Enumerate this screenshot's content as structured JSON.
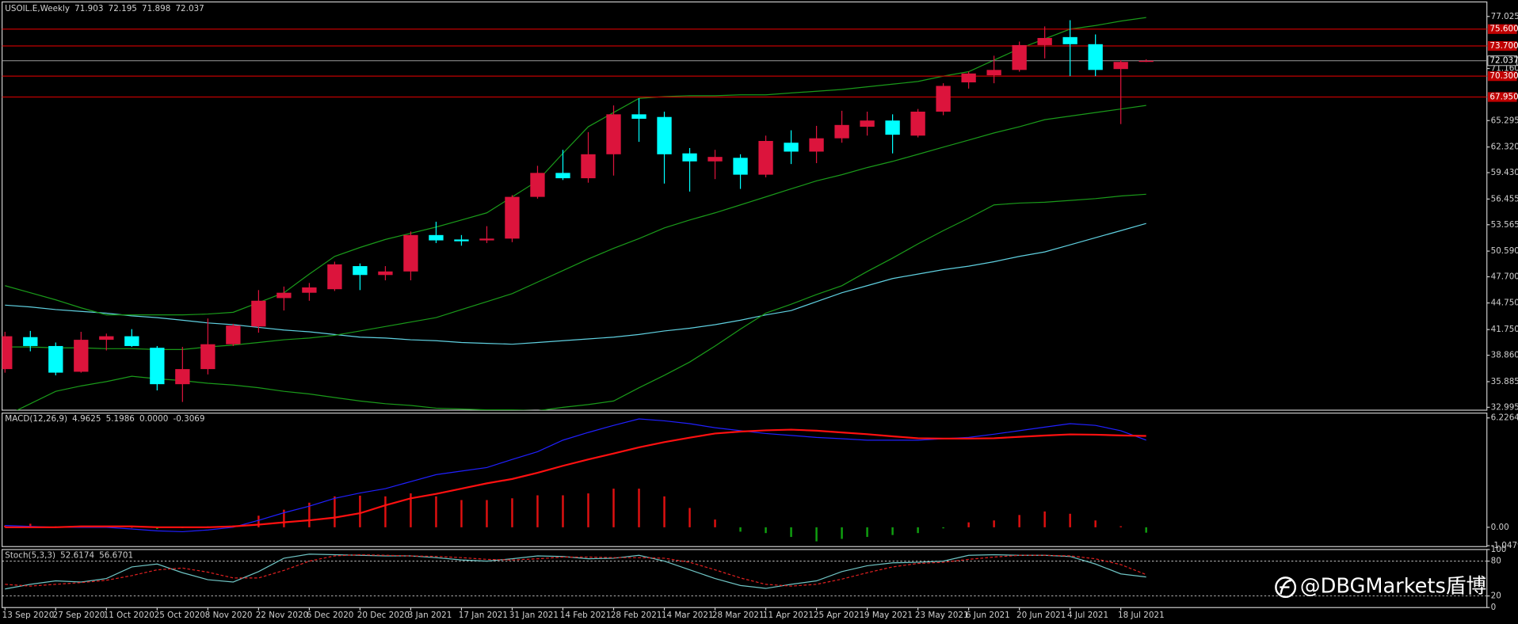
{
  "chart_data": [
    {
      "type": "candlestick",
      "title": "USOIL.E,Weekly",
      "categories": [
        "13 Sep 2020",
        null,
        "27 Sep 2020",
        null,
        "11 Oct 2020",
        null,
        "25 Oct 2020",
        null,
        "8 Nov 2020",
        null,
        "22 Nov 2020",
        null,
        "6 Dec 2020",
        null,
        "20 Dec 2020",
        null,
        "3 Jan 2021",
        null,
        "17 Jan 2021",
        null,
        "31 Jan 2021",
        null,
        "14 Feb 2021",
        null,
        "28 Feb 2021",
        null,
        "14 Mar 2021",
        null,
        "28 Mar 2021",
        null,
        "11 Apr 2021",
        null,
        "25 Apr 2021",
        null,
        "9 May 2021",
        null,
        "23 May 2021",
        null,
        "6 Jun 2021",
        null,
        "20 Jun 2021",
        null,
        "4 Jul 2021",
        null,
        "18 Jul 2021",
        null
      ],
      "open": [
        37.3,
        40.9,
        39.9,
        37.0,
        40.6,
        41.0,
        39.7,
        35.6,
        37.3,
        40.1,
        42.1,
        45.3,
        45.9,
        46.3,
        48.9,
        47.9,
        48.3,
        52.4,
        51.9,
        51.8,
        52.0,
        56.7,
        59.4,
        58.8,
        61.5,
        66.0,
        65.7,
        61.6,
        60.7,
        61.1,
        59.2,
        62.8,
        61.8,
        63.3,
        64.6,
        65.3,
        63.6,
        66.3,
        69.6,
        70.4,
        71.0,
        73.8,
        74.7,
        73.9,
        71.1,
        71.903
      ],
      "high": [
        41.5,
        41.6,
        40.3,
        41.5,
        41.3,
        41.8,
        39.9,
        39.8,
        43.0,
        42.4,
        46.2,
        46.6,
        47.0,
        49.4,
        49.2,
        48.9,
        52.8,
        53.9,
        52.4,
        53.4,
        56.9,
        60.2,
        62.0,
        64.0,
        67.0,
        67.8,
        66.3,
        62.2,
        62.0,
        61.5,
        63.6,
        64.2,
        64.7,
        66.4,
        66.3,
        66.0,
        66.6,
        69.5,
        70.8,
        72.6,
        74.2,
        75.9,
        76.6,
        75.0,
        72.1,
        72.195
      ],
      "low": [
        36.9,
        39.3,
        36.6,
        36.9,
        39.4,
        39.8,
        34.9,
        33.6,
        36.7,
        39.9,
        41.4,
        43.9,
        45.0,
        46.1,
        46.2,
        47.3,
        47.3,
        51.5,
        51.2,
        51.5,
        51.6,
        56.5,
        58.6,
        58.3,
        59.1,
        62.9,
        58.2,
        57.3,
        58.7,
        57.6,
        58.9,
        60.4,
        60.5,
        62.8,
        63.6,
        61.6,
        63.4,
        65.9,
        68.9,
        69.5,
        70.8,
        72.3,
        70.3,
        70.3,
        64.9,
        71.898
      ],
      "close": [
        41.0,
        39.9,
        36.9,
        40.6,
        41.0,
        39.9,
        35.6,
        37.3,
        40.1,
        42.2,
        45.0,
        45.9,
        46.5,
        49.1,
        47.9,
        48.3,
        52.4,
        51.8,
        51.7,
        52.0,
        56.7,
        59.4,
        58.8,
        61.5,
        66.0,
        65.5,
        61.5,
        60.7,
        61.2,
        59.2,
        63.0,
        61.8,
        63.3,
        64.8,
        65.3,
        63.7,
        66.3,
        69.2,
        70.6,
        71.0,
        73.8,
        74.6,
        73.9,
        71.0,
        71.9,
        72.037
      ],
      "up_color": "#dc143c",
      "down_color": "#00ffff",
      "overlays": [
        {
          "color": "#5fd0e0",
          "values": [
            44.5,
            44.3,
            44.0,
            43.8,
            43.6,
            43.3,
            43.1,
            42.8,
            42.5,
            42.3,
            42.0,
            41.7,
            41.5,
            41.2,
            40.9,
            40.8,
            40.6,
            40.5,
            40.3,
            40.2,
            40.1,
            40.3,
            40.5,
            40.7,
            40.9,
            41.2,
            41.6,
            41.9,
            42.3,
            42.8,
            43.4,
            43.9,
            44.9,
            45.9,
            46.7,
            47.5,
            48.0,
            48.5,
            48.9,
            49.4,
            50.0,
            50.5,
            51.3,
            52.1,
            52.9,
            53.7
          ]
        },
        {
          "color": "#1a9a1a",
          "values": [
            39.8,
            39.8,
            39.7,
            39.7,
            39.6,
            39.6,
            39.5,
            39.5,
            39.8,
            40.0,
            40.3,
            40.6,
            40.8,
            41.1,
            41.6,
            42.1,
            42.6,
            43.1,
            44.0,
            44.9,
            45.8,
            47.1,
            48.4,
            49.7,
            50.9,
            52.0,
            53.2,
            54.1,
            54.9,
            55.8,
            56.7,
            57.6,
            58.5,
            59.2,
            60.0,
            60.7,
            61.5,
            62.3,
            63.1,
            63.9,
            64.6,
            65.4,
            65.8,
            66.2,
            66.6,
            67.0
          ]
        },
        {
          "color": "#1a9a1a",
          "values": [
            46.7,
            45.9,
            45.1,
            44.2,
            43.4,
            43.4,
            43.4,
            43.4,
            43.5,
            43.7,
            44.8,
            45.9,
            48.0,
            50.0,
            51.0,
            51.9,
            52.6,
            53.3,
            54.1,
            54.9,
            56.7,
            58.5,
            61.6,
            64.6,
            66.2,
            67.8,
            68.0,
            68.1,
            68.1,
            68.2,
            68.2,
            68.4,
            68.6,
            68.8,
            69.1,
            69.4,
            69.7,
            70.3,
            70.8,
            72.1,
            73.4,
            74.5,
            75.6,
            76.0,
            76.5,
            76.9
          ]
        },
        {
          "color": "#1a9a1a",
          "values": [
            32.0,
            33.4,
            34.8,
            35.4,
            35.9,
            36.5,
            36.2,
            36.0,
            35.7,
            35.5,
            35.2,
            34.8,
            34.5,
            34.1,
            33.7,
            33.4,
            33.2,
            32.9,
            32.8,
            32.7,
            32.7,
            32.6,
            33.0,
            33.3,
            33.7,
            35.2,
            36.6,
            38.1,
            39.9,
            41.8,
            43.6,
            44.6,
            45.7,
            46.7,
            48.3,
            49.8,
            51.4,
            52.9,
            54.3,
            55.8,
            56.0,
            56.1,
            56.3,
            56.5,
            56.8,
            57.0
          ]
        }
      ],
      "levels": [
        {
          "value": 75.6,
          "label": "75.600"
        },
        {
          "value": 73.7,
          "label": "73.700"
        },
        {
          "value": 70.3,
          "label": "70.300"
        },
        {
          "value": 67.95,
          "label": "67.950"
        }
      ],
      "level_color": "#c00000",
      "price_line_color": "#8a8a8a",
      "ylim": [
        32.67,
        78.66
      ],
      "yticks": [
        77.025,
        {
          "value": 71.16,
          "label": "71.160"
        },
        65.295,
        {
          "value": 62.32,
          "label": "62.320"
        },
        {
          "value": 59.43,
          "label": "59.430"
        },
        56.455,
        53.565,
        {
          "value": 50.59,
          "label": "50.590"
        },
        {
          "value": 47.7,
          "label": "47.700"
        },
        {
          "value": 44.75,
          "label": "44.750"
        },
        {
          "value": 41.75,
          "label": "41.750"
        },
        {
          "value": 38.86,
          "label": "38.860"
        },
        35.885,
        32.995
      ]
    },
    {
      "type": "macd",
      "title": "MACD(12,26,9)",
      "lines": [
        {
          "color": "#2020ff",
          "values": [
            0.1,
            0.05,
            0.0,
            0.0,
            0.0,
            -0.1,
            -0.2,
            -0.25,
            -0.15,
            0.0,
            0.4,
            0.83,
            1.2,
            1.65,
            1.95,
            2.2,
            2.6,
            3.0,
            3.2,
            3.4,
            3.86,
            4.3,
            4.96,
            5.4,
            5.8,
            6.17,
            6.06,
            5.9,
            5.67,
            5.5,
            5.34,
            5.23,
            5.12,
            5.04,
            4.96,
            4.96,
            4.96,
            5.04,
            5.12,
            5.3,
            5.5,
            5.7,
            5.9,
            5.8,
            5.5,
            4.9625
          ]
        },
        {
          "color": "#ff1010",
          "values": [
            0,
            0,
            0,
            0.05,
            0.05,
            0.05,
            0,
            0,
            0,
            0.05,
            0.15,
            0.28,
            0.4,
            0.55,
            0.8,
            1.25,
            1.65,
            1.9,
            2.2,
            2.5,
            2.75,
            3.1,
            3.5,
            3.86,
            4.2,
            4.55,
            4.85,
            5.1,
            5.34,
            5.45,
            5.52,
            5.56,
            5.5,
            5.4,
            5.3,
            5.18,
            5.07,
            5.05,
            5.05,
            5.07,
            5.15,
            5.22,
            5.29,
            5.27,
            5.23,
            5.1986
          ]
        }
      ],
      "readout_buffer": {
        "value": 0,
        "label": "0.0000"
      },
      "histogram": {
        "pos_color": "#e01010",
        "neg_color": "#10a010",
        "values": [
          0.1,
          0.2,
          0.05,
          0.05,
          0.05,
          0.0,
          -0.1,
          -0.05,
          0.05,
          0.1,
          0.66,
          1.0,
          1.4,
          1.76,
          1.8,
          1.76,
          1.93,
          1.76,
          1.55,
          1.55,
          1.65,
          1.82,
          1.82,
          1.93,
          2.2,
          2.2,
          1.76,
          1.1,
          0.44,
          -0.25,
          -0.33,
          -0.55,
          -0.8,
          -0.66,
          -0.55,
          -0.44,
          -0.33,
          -0.06,
          0.28,
          0.39,
          0.7,
          0.9,
          0.77,
          0.39,
          0.06,
          -0.3069
        ]
      },
      "ylim": [
        -1.1,
        6.5
      ],
      "yticks": [
        6.2264,
        {
          "value": 0,
          "label": "0.00"
        },
        -1.0479
      ]
    },
    {
      "type": "stochastic",
      "title": "Stoch(5,3,3)",
      "lines": [
        {
          "color": "#6fc4c4",
          "dashed": false,
          "values": [
            32,
            40,
            46,
            44,
            50,
            70,
            75,
            60,
            48,
            44,
            62,
            85,
            92,
            91,
            90,
            89,
            89,
            86,
            82,
            80,
            84,
            89,
            88,
            84,
            85,
            90,
            80,
            65,
            50,
            38,
            33,
            40,
            46,
            62,
            72,
            77,
            78,
            80,
            90,
            91,
            90,
            90,
            88,
            75,
            58,
            52.6174
          ]
        },
        {
          "color": "#e02020",
          "dashed": true,
          "values": [
            40,
            37,
            40,
            43,
            47,
            55,
            65,
            68,
            61,
            51,
            51,
            64,
            80,
            89,
            91,
            90,
            89,
            88,
            86,
            83,
            82,
            84,
            87,
            87,
            86,
            86,
            85,
            78,
            65,
            51,
            40,
            37,
            40,
            49,
            60,
            70,
            76,
            78,
            83,
            87,
            90,
            90,
            89,
            84,
            74,
            56.6701
          ]
        }
      ],
      "levels": [
        20,
        80
      ],
      "ylim": [
        0,
        100
      ],
      "yticks": [
        0,
        20,
        80,
        100
      ]
    }
  ],
  "watermark": "@DBGMarkets盾博"
}
